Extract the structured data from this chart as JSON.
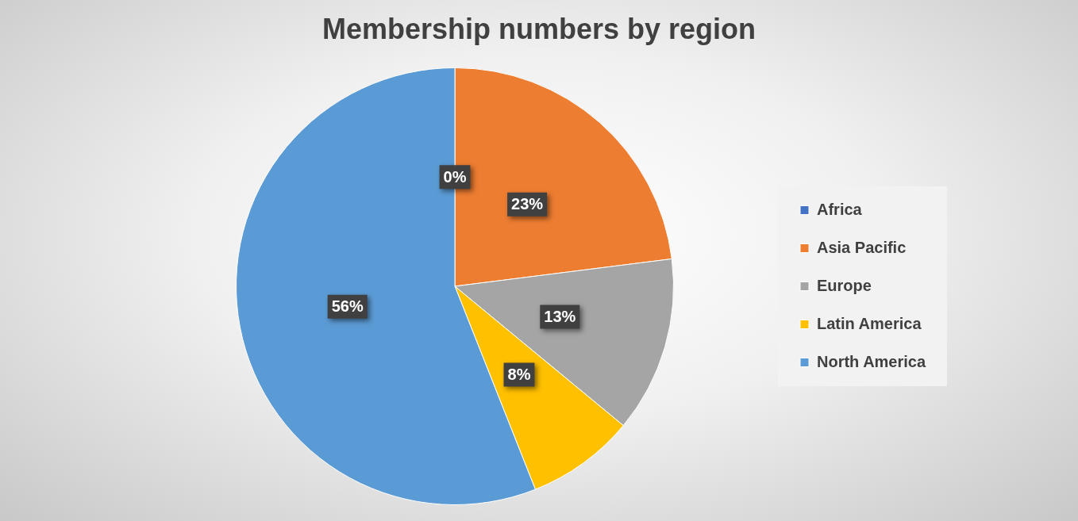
{
  "chart_data": {
    "type": "pie",
    "title": "Membership numbers by region",
    "categories": [
      "Africa",
      "Asia Pacific",
      "Europe",
      "Latin America",
      "North America"
    ],
    "values": [
      0,
      23,
      13,
      8,
      56
    ],
    "value_labels": [
      "0%",
      "23%",
      "13%",
      "8%",
      "56%"
    ],
    "colors": [
      "#4472c4",
      "#ed7d31",
      "#a5a5a5",
      "#ffc000",
      "#5b9bd5"
    ],
    "legend": "right"
  }
}
